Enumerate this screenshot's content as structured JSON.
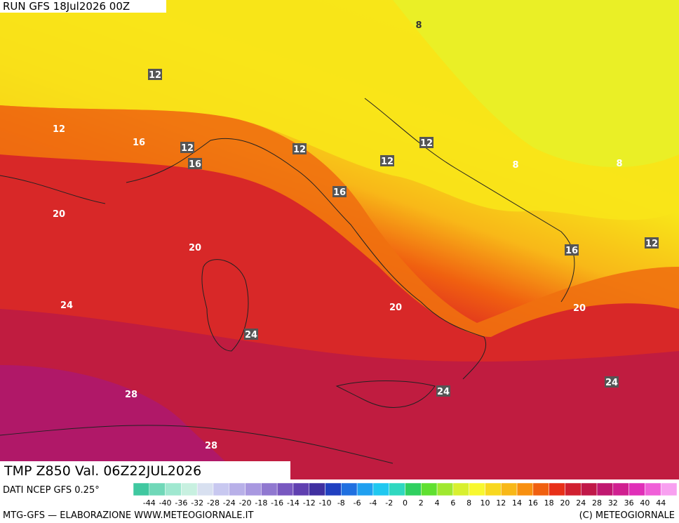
{
  "header": {
    "run": "RUN GFS 18Jul2026 00Z",
    "field": "TMP Z850 Val. 06Z22JUL2026",
    "source": "DATI NCEP GFS 0.25°"
  },
  "contour_labels": [
    "8",
    "12",
    "12",
    "16",
    "12",
    "16",
    "12",
    "12",
    "12",
    "8",
    "8",
    "16",
    "20",
    "20",
    "16",
    "12",
    "24",
    "20",
    "20",
    "24",
    "28",
    "24",
    "24",
    "28"
  ],
  "legend": {
    "labels": [
      "-44",
      "-40",
      "-36",
      "-32",
      "-28",
      "-24",
      "-20",
      "-18",
      "-16",
      "-14",
      "-12",
      "-10",
      "-8",
      "-6",
      "-4",
      "-2",
      "0",
      "2",
      "4",
      "6",
      "8",
      "10",
      "12",
      "14",
      "16",
      "18",
      "20",
      "24",
      "28",
      "32",
      "36",
      "40",
      "44"
    ],
    "colors": [
      "#40c8a0",
      "#70d8b8",
      "#a0e8d0",
      "#c8f0e0",
      "#d8e0f0",
      "#c8c8f0",
      "#b8b0e8",
      "#a898e0",
      "#9078d0",
      "#7858c0",
      "#6040b0",
      "#4030a0",
      "#2040c0",
      "#2070e0",
      "#20a0f0",
      "#20c8f0",
      "#30d8c0",
      "#30d060",
      "#60e030",
      "#a0e830",
      "#d8f030",
      "#f8f830",
      "#f8d820",
      "#f8b818",
      "#f89010",
      "#f06010",
      "#e83018",
      "#d02030",
      "#c01848",
      "#c01870",
      "#d02090",
      "#e030b8",
      "#f060d8",
      "#f8a0f0"
    ]
  },
  "footer": {
    "left": "MTG-GFS — ELABORAZIONE WWW.METEOGIORNALE.IT",
    "right": "(C) METEOGIORNALE"
  }
}
